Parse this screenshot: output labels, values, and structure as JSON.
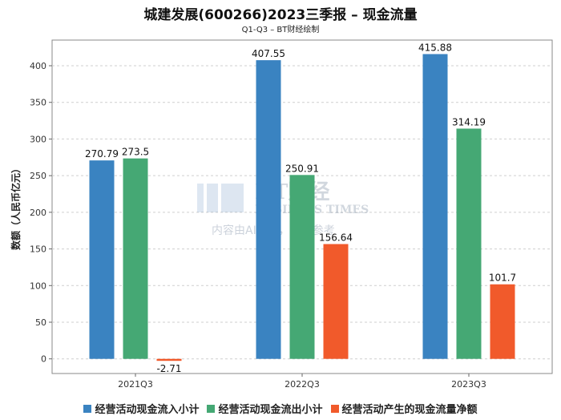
{
  "chart_data": {
    "type": "bar",
    "title": "城建发展(600266)2023三季报 – 现金流量",
    "subtitle": "Q1-Q3 – BT财经绘制",
    "ylabel": "数额（人民币亿元）",
    "xlabel": "",
    "ylim": [
      -20,
      435
    ],
    "yticks": [
      0,
      50,
      100,
      150,
      200,
      250,
      300,
      350,
      400
    ],
    "grid": true,
    "legend_position": "bottom",
    "categories": [
      "2021Q3",
      "2022Q3",
      "2023Q3"
    ],
    "series": [
      {
        "name": "经营活动现金流入小计",
        "color": "#3a83c1",
        "values": [
          270.79,
          407.55,
          415.88
        ],
        "labels": [
          "270.79",
          "407.55",
          "415.88"
        ]
      },
      {
        "name": "经营活动现金流出小计",
        "color": "#45a874",
        "values": [
          273.5,
          250.91,
          314.19
        ],
        "labels": [
          "273.5",
          "250.91",
          "314.19"
        ]
      },
      {
        "name": "经营活动产生的现金流量净额",
        "color": "#f15a2b",
        "values": [
          -2.71,
          156.64,
          101.7
        ],
        "labels": [
          "-2.71",
          "156.64",
          "101.7"
        ]
      }
    ]
  },
  "watermark": {
    "brand": "BT财经",
    "brand_en": "BUSINESS TIMES",
    "notice": "内容由AI生成，仅供参考"
  }
}
